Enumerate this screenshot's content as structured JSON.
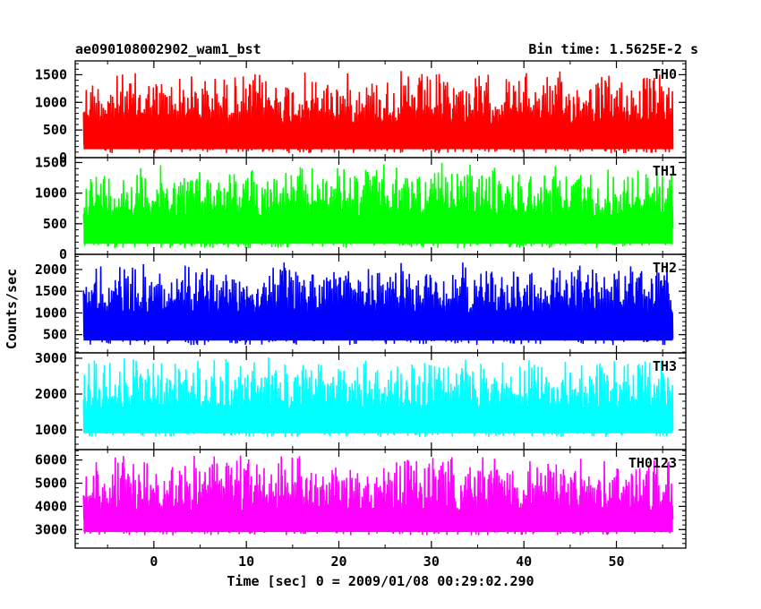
{
  "header": {
    "left_title": "ae090108002902_wam1_bst",
    "right_title": "Bin time: 1.5625E-2 s"
  },
  "chart_data": {
    "type": "line",
    "xlabel": "Time [sec] 0 = 2009/01/08 00:29:02.290",
    "ylabel": "Counts/sec",
    "xlim": [
      -8.5,
      57.5
    ],
    "x_ticks": [
      0,
      10,
      20,
      30,
      40,
      50
    ],
    "x_tick_labels": [
      "0",
      "10",
      "20",
      "30",
      "40",
      "50"
    ],
    "data_x_range": [
      -7.6,
      56.1
    ],
    "bin_time_s": 0.015625,
    "panels": [
      {
        "name": "TH0",
        "color": "#ff0000",
        "ylim": [
          0,
          1750
        ],
        "y_ticks": [
          0,
          500,
          1000,
          1500
        ],
        "y_tick_labels": [
          "0",
          "500",
          "1000",
          "1500"
        ],
        "baseline": 560,
        "low": 80,
        "high": 1600
      },
      {
        "name": "TH1",
        "color": "#00ff00",
        "ylim": [
          0,
          1580
        ],
        "y_ticks": [
          0,
          500,
          1000,
          1500
        ],
        "y_tick_labels": [
          "0",
          "500",
          "1000",
          "1500"
        ],
        "baseline": 580,
        "low": 100,
        "high": 1500
      },
      {
        "name": "TH2",
        "color": "#0000ff",
        "ylim": [
          80,
          2350
        ],
        "y_ticks": [
          500,
          1000,
          1500,
          2000
        ],
        "y_tick_labels": [
          "500",
          "1000",
          "1500",
          "2000"
        ],
        "baseline": 950,
        "low": 260,
        "high": 2200
      },
      {
        "name": "TH3",
        "color": "#00ffff",
        "ylim": [
          450,
          3150
        ],
        "y_ticks": [
          1000,
          2000,
          3000
        ],
        "y_tick_labels": [
          "1000",
          "2000",
          "3000"
        ],
        "baseline": 1500,
        "low": 800,
        "high": 3050
      },
      {
        "name": "TH0123",
        "color": "#ff00ff",
        "ylim": [
          2200,
          6450
        ],
        "y_ticks": [
          3000,
          4000,
          5000,
          6000
        ],
        "y_tick_labels": [
          "3000",
          "4000",
          "5000",
          "6000"
        ],
        "baseline": 3700,
        "low": 2750,
        "high": 6300
      }
    ]
  }
}
